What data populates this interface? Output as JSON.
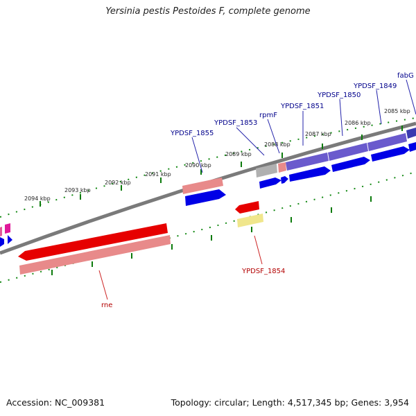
{
  "title": "Yersinia pestis Pestoides F, complete genome",
  "footer": {
    "accession": "Accession: NC_009381",
    "summary": "Topology: circular; Length: 4,517,345 bp; Genes: 3,954"
  },
  "kbp_labels": [
    "2094 kbp",
    "2093 kbp",
    "2092 kbp",
    "2091 kbp",
    "2090 kbp",
    "2089 kbp",
    "2088 kbp",
    "2087 kbp",
    "2086 kbp",
    "2085 kbp"
  ],
  "gene_labels": {
    "ypdsf_1855": "YPDSF_1855",
    "ypdsf_1853": "YPDSF_1853",
    "rpmf": "rpmF",
    "ypdsf_1851": "YPDSF_1851",
    "ypdsf_1850": "YPDSF_1850",
    "ypdsf_1849": "YPDSF_1849",
    "fabg": "fabG",
    "ypdsf_1854": "YPDSF_1854",
    "rne": "rne"
  },
  "colors": {
    "backbone": "#808080",
    "tick": "#007000",
    "blue_gene": "#0000e6",
    "red_gene": "#e60000",
    "pink_gene": "#e88a8a",
    "purple_gene": "#6a5acd",
    "magenta_gene": "#e0189a",
    "yellow_gene": "#f0e68c",
    "grey_gene": "#b0b0b0"
  }
}
